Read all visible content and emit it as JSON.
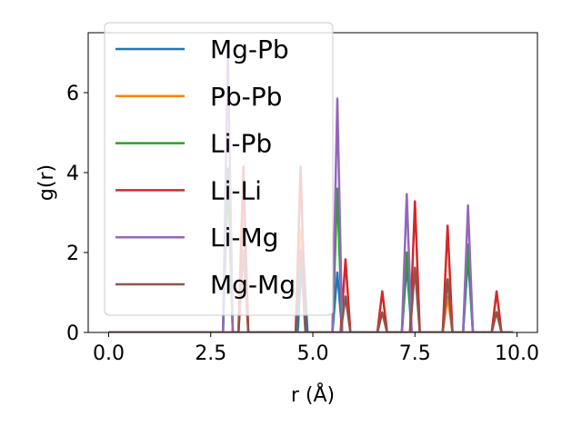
{
  "chart_data": {
    "type": "line",
    "xlabel": "r (Å)",
    "ylabel": "g(r)",
    "xlim": [
      -0.5,
      10.5
    ],
    "ylim": [
      0,
      7.5
    ],
    "xticks": [
      "0.0",
      "2.5",
      "5.0",
      "7.5",
      "10.0"
    ],
    "yticks": [
      "0",
      "2",
      "4",
      "6"
    ],
    "x_range": [
      0.0,
      9.9
    ],
    "peak_width": 0.12,
    "legend_position": "upper-left",
    "grid": false,
    "series": [
      {
        "name": "Mg-Pb",
        "color": "#1f77b4",
        "peaks": [
          [
            2.92,
            4.1
          ],
          [
            4.75,
            2.3
          ],
          [
            5.6,
            1.5
          ],
          [
            7.3,
            1.7
          ],
          [
            8.8,
            1.9
          ]
        ]
      },
      {
        "name": "Pb-Pb",
        "color": "#ff7f0e",
        "peaks": [
          [
            3.3,
            3.3
          ],
          [
            4.7,
            2.6
          ],
          [
            6.7,
            0.5
          ],
          [
            8.3,
            0.9
          ]
        ]
      },
      {
        "name": "Li-Pb",
        "color": "#2ca02c",
        "peaks": [
          [
            2.92,
            4.0
          ],
          [
            5.6,
            3.6
          ],
          [
            7.3,
            2.0
          ],
          [
            8.8,
            2.2
          ]
        ]
      },
      {
        "name": "Li-Li",
        "color": "#d62728",
        "peaks": [
          [
            3.3,
            4.15
          ],
          [
            4.7,
            4.15
          ],
          [
            5.8,
            1.83
          ],
          [
            6.7,
            1.03
          ],
          [
            7.5,
            3.28
          ],
          [
            8.3,
            2.67
          ],
          [
            9.5,
            1.03
          ]
        ]
      },
      {
        "name": "Li-Mg",
        "color": "#9467bd",
        "peaks": [
          [
            2.92,
            7.05
          ],
          [
            5.6,
            5.85
          ],
          [
            7.3,
            3.46
          ],
          [
            8.8,
            3.18
          ]
        ]
      },
      {
        "name": "Mg-Mg",
        "color": "#8c564b",
        "peaks": [
          [
            3.3,
            2.05
          ],
          [
            4.7,
            2.05
          ],
          [
            5.8,
            0.9
          ],
          [
            6.7,
            0.5
          ],
          [
            7.5,
            1.62
          ],
          [
            8.3,
            1.33
          ],
          [
            9.5,
            0.51
          ]
        ]
      }
    ]
  }
}
